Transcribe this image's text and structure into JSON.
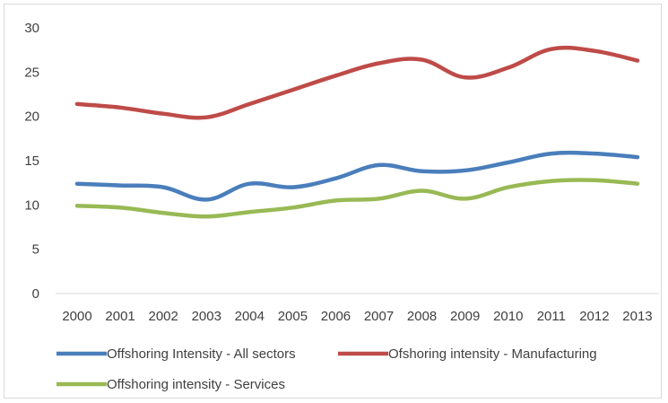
{
  "chart_data": {
    "type": "line",
    "title": "",
    "xlabel": "",
    "ylabel": "",
    "categories": [
      "2000",
      "2001",
      "2002",
      "2003",
      "2004",
      "2005",
      "2006",
      "2007",
      "2008",
      "2009",
      "2010",
      "2011",
      "2012",
      "2013"
    ],
    "ylim": [
      0,
      30
    ],
    "yticks": [
      0,
      5,
      10,
      15,
      20,
      25,
      30
    ],
    "grid": false,
    "legend_position": "bottom",
    "smooth": true,
    "series": [
      {
        "name": "Offshoring Intensity - All sectors",
        "color": "#4a7ebb",
        "values": [
          12.4,
          12.2,
          12.0,
          10.6,
          12.4,
          12.0,
          13.0,
          14.5,
          13.8,
          13.9,
          14.8,
          15.8,
          15.8,
          15.4
        ]
      },
      {
        "name": "Ofshoring intensity - Manufacturing",
        "color": "#be4b48",
        "values": [
          21.4,
          21.0,
          20.3,
          19.9,
          21.4,
          23.0,
          24.6,
          26.0,
          26.4,
          24.4,
          25.5,
          27.6,
          27.4,
          26.3
        ]
      },
      {
        "name": "Offshoring intensity - Services",
        "color": "#98b954",
        "values": [
          9.9,
          9.7,
          9.1,
          8.7,
          9.2,
          9.7,
          10.5,
          10.7,
          11.6,
          10.7,
          12.0,
          12.7,
          12.8,
          12.4
        ]
      }
    ]
  }
}
